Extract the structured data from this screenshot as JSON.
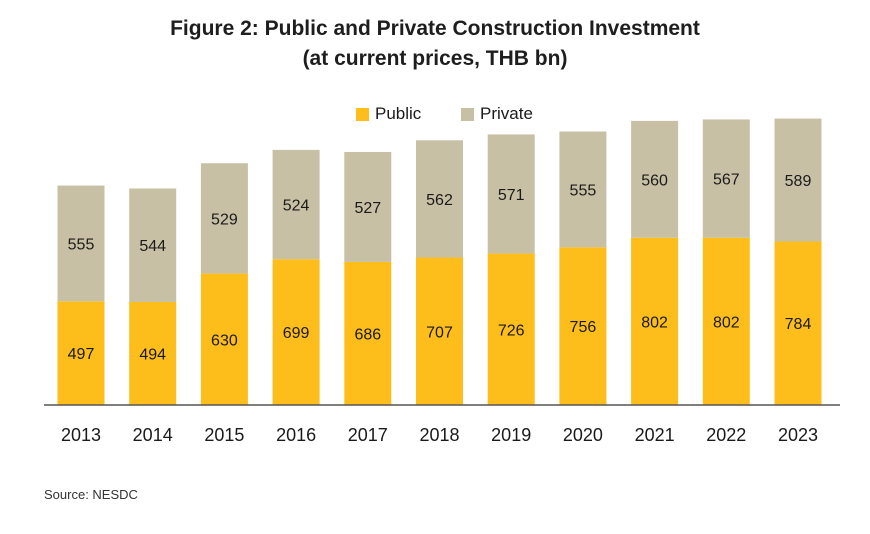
{
  "title_line1": "Figure 2: Public and Private Construction Investment",
  "title_line2": "(at current prices, THB bn)",
  "source": "Source: NESDC",
  "colors": {
    "public": "#FDBE1C",
    "private": "#C8C0A5",
    "axis": "#555555"
  },
  "chart_data": {
    "type": "bar",
    "stacked": true,
    "title": "Figure 2: Public and Private Construction Investment (at current prices, THB bn)",
    "categories": [
      "2013",
      "2014",
      "2015",
      "2016",
      "2017",
      "2018",
      "2019",
      "2020",
      "2021",
      "2022",
      "2023"
    ],
    "series": [
      {
        "name": "Public",
        "values": [
          497,
          494,
          630,
          699,
          686,
          707,
          726,
          756,
          802,
          802,
          784
        ]
      },
      {
        "name": "Private",
        "values": [
          555,
          544,
          529,
          524,
          527,
          562,
          571,
          555,
          560,
          567,
          589
        ]
      }
    ],
    "legend_position": "top-center",
    "grid": false,
    "ylim": [
      0,
      1400
    ]
  }
}
